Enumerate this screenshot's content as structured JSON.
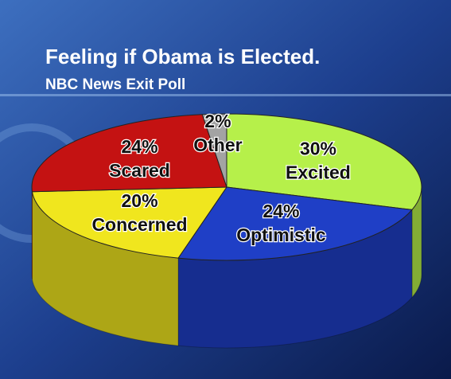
{
  "chart_data": {
    "type": "pie",
    "title": "Feeling if Obama is Elected.",
    "subtitle": "NBC News Exit Poll",
    "categories": [
      "Excited",
      "Optimistic",
      "Concerned",
      "Scared",
      "Other"
    ],
    "values": [
      30,
      24,
      20,
      24,
      2
    ],
    "value_labels": [
      "30%",
      "24%",
      "20%",
      "24%",
      "2%"
    ],
    "colors": [
      "#b6f04a",
      "#1f3fc6",
      "#f0e61e",
      "#c41212",
      "#a3a3a3"
    ],
    "start_angle": -90,
    "direction": "clockwise"
  }
}
